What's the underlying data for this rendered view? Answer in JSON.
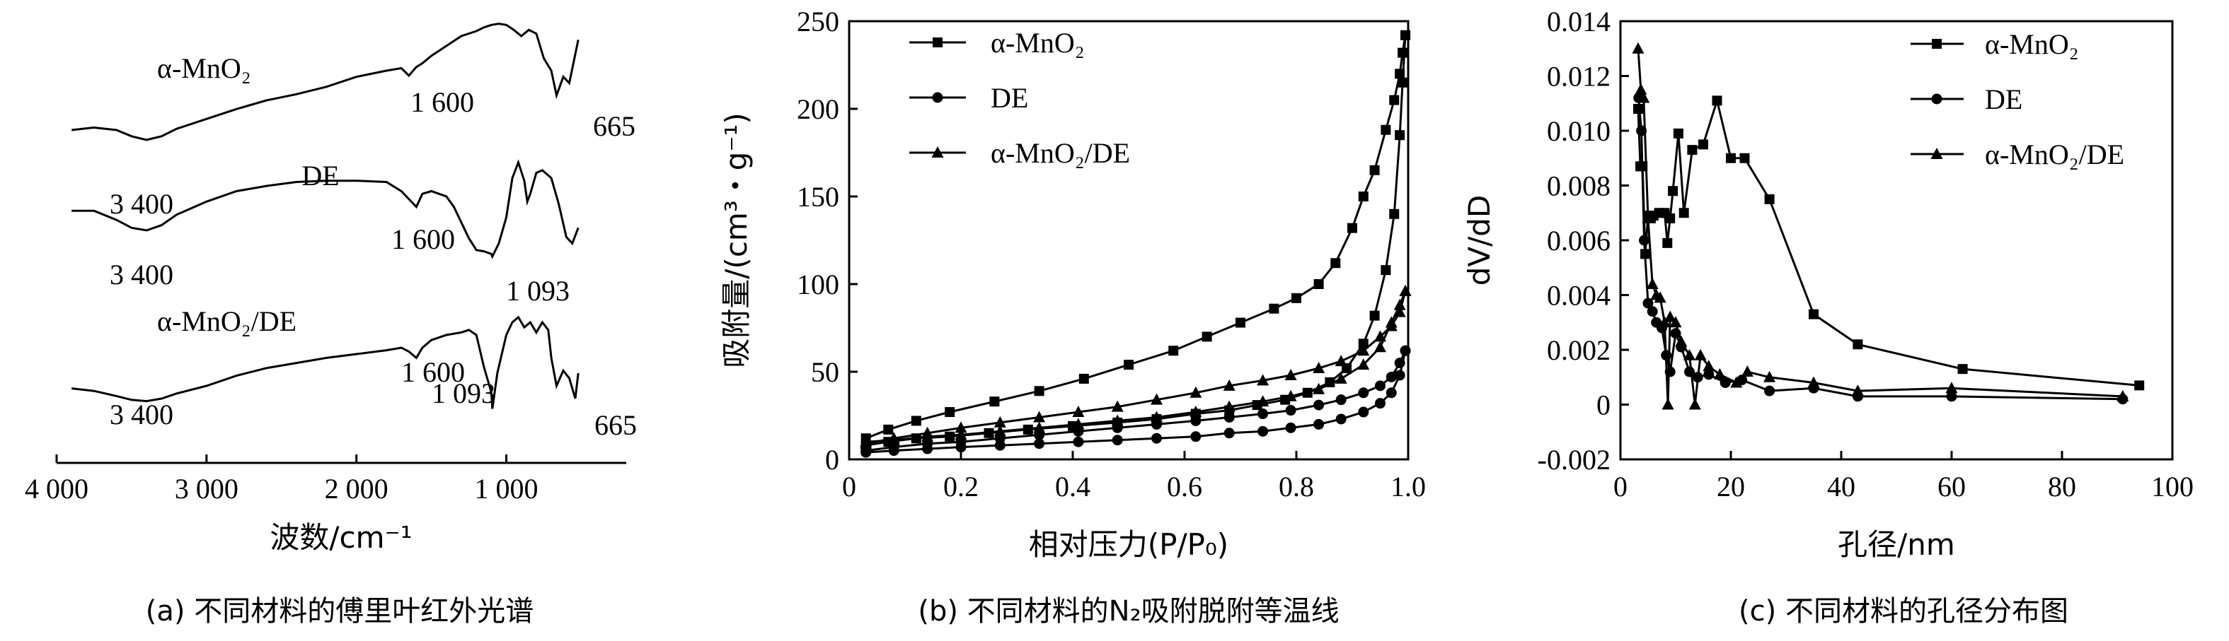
{
  "chart_data": [
    {
      "type": "line",
      "panel": "a",
      "caption": "(a) 不同材料的傅里叶红外光谱",
      "xlabel": "波数/cm⁻¹",
      "xticks": [
        "4 000",
        "3 000",
        "2 000",
        "1 000"
      ],
      "xlim": [
        4000,
        200
      ],
      "series": [
        {
          "name": "α-MnO₂",
          "x": [
            3900,
            3750,
            3600,
            3500,
            3400,
            3300,
            3200,
            3000,
            2900,
            2800,
            2600,
            2400,
            2200,
            2000,
            1800,
            1700,
            1650,
            1600,
            1560,
            1500,
            1400,
            1300,
            1200,
            1150,
            1100,
            1050,
            1000,
            950,
            900,
            850,
            800,
            750,
            700,
            665,
            620,
            580,
            520
          ],
          "y": [
            0.12,
            0.14,
            0.12,
            0.07,
            0.04,
            0.07,
            0.13,
            0.21,
            0.25,
            0.29,
            0.36,
            0.41,
            0.47,
            0.55,
            0.6,
            0.62,
            0.56,
            0.63,
            0.66,
            0.72,
            0.8,
            0.88,
            0.92,
            0.95,
            0.97,
            0.98,
            0.97,
            0.93,
            0.88,
            0.93,
            0.9,
            0.7,
            0.6,
            0.4,
            0.55,
            0.5,
            0.85
          ]
        },
        {
          "name": "DE",
          "x": [
            3900,
            3750,
            3600,
            3500,
            3400,
            3300,
            3200,
            3000,
            2800,
            2600,
            2400,
            2200,
            2000,
            1800,
            1700,
            1650,
            1600,
            1560,
            1500,
            1400,
            1350,
            1300,
            1250,
            1200,
            1150,
            1100,
            1093,
            1050,
            1000,
            960,
            920,
            880,
            860,
            840,
            800,
            760,
            700,
            650,
            600,
            560,
            520
          ],
          "y": [
            0.55,
            0.55,
            0.48,
            0.42,
            0.4,
            0.44,
            0.52,
            0.62,
            0.7,
            0.74,
            0.77,
            0.78,
            0.78,
            0.77,
            0.7,
            0.64,
            0.58,
            0.68,
            0.7,
            0.66,
            0.58,
            0.46,
            0.34,
            0.25,
            0.24,
            0.22,
            0.2,
            0.3,
            0.5,
            0.8,
            0.92,
            0.78,
            0.62,
            0.68,
            0.84,
            0.86,
            0.8,
            0.6,
            0.35,
            0.3,
            0.42
          ]
        },
        {
          "name": "α-MnO₂/DE",
          "x": [
            3900,
            3750,
            3600,
            3500,
            3400,
            3300,
            3200,
            3000,
            2800,
            2600,
            2400,
            2200,
            2000,
            1800,
            1700,
            1650,
            1600,
            1560,
            1500,
            1400,
            1300,
            1250,
            1200,
            1150,
            1100,
            1093,
            1060,
            1000,
            960,
            920,
            880,
            840,
            800,
            760,
            720,
            700,
            665,
            620,
            580,
            540,
            520
          ],
          "y": [
            0.28,
            0.26,
            0.22,
            0.19,
            0.18,
            0.2,
            0.24,
            0.3,
            0.38,
            0.44,
            0.48,
            0.52,
            0.55,
            0.58,
            0.6,
            0.57,
            0.52,
            0.6,
            0.66,
            0.7,
            0.72,
            0.74,
            0.7,
            0.45,
            0.25,
            0.12,
            0.4,
            0.7,
            0.8,
            0.84,
            0.76,
            0.8,
            0.72,
            0.8,
            0.74,
            0.52,
            0.3,
            0.42,
            0.36,
            0.2,
            0.4
          ]
        }
      ],
      "annotations": [
        {
          "text": "α-MnO₂"
        },
        {
          "text": "1 600"
        },
        {
          "text": "665"
        },
        {
          "text": "3 400"
        },
        {
          "text": "DE"
        },
        {
          "text": "1 600"
        },
        {
          "text": "3 400"
        },
        {
          "text": "1 093"
        },
        {
          "text": "α-MnO₂/DE"
        },
        {
          "text": "1 600"
        },
        {
          "text": "3 400"
        },
        {
          "text": "1 093"
        },
        {
          "text": "665"
        }
      ]
    },
    {
      "type": "line",
      "panel": "b",
      "caption": "(b) 不同材料的N₂吸附脱附等温线",
      "xlabel": "相对压力(P/P₀)",
      "ylabel": "吸附量/(cm³・g⁻¹)",
      "xlim": [
        0,
        1.0
      ],
      "ylim": [
        0,
        250
      ],
      "xticks": [
        "0",
        "0.2",
        "0.4",
        "0.6",
        "0.8",
        "1.0"
      ],
      "yticks": [
        "0",
        "50",
        "100",
        "150",
        "200",
        "250"
      ],
      "legend_position": "top-left",
      "series": [
        {
          "name": "α-MnO₂",
          "marker": "square",
          "adsorption": {
            "x": [
              0.03,
              0.07,
              0.12,
              0.18,
              0.25,
              0.32,
              0.4,
              0.48,
              0.55,
              0.62,
              0.68,
              0.73,
              0.78,
              0.82,
              0.86,
              0.89,
              0.92,
              0.94,
              0.96,
              0.975,
              0.985,
              0.99,
              0.995
            ],
            "y": [
              8,
              10,
              12,
              13,
              15,
              17,
              19,
              21,
              23,
              26,
              28,
              31,
              34,
              38,
              44,
              52,
              66,
              82,
              108,
              140,
              185,
              215,
              242
            ]
          },
          "desorption": {
            "x": [
              0.995,
              0.99,
              0.985,
              0.975,
              0.96,
              0.94,
              0.92,
              0.9,
              0.87,
              0.84,
              0.8,
              0.76,
              0.7,
              0.64,
              0.58,
              0.5,
              0.42,
              0.34,
              0.26,
              0.18,
              0.12,
              0.07,
              0.03
            ],
            "y": [
              242,
              232,
              220,
              205,
              188,
              165,
              150,
              132,
              112,
              100,
              92,
              86,
              78,
              70,
              62,
              54,
              46,
              39,
              33,
              27,
              22,
              17,
              12
            ]
          }
        },
        {
          "name": "DE",
          "marker": "circle",
          "adsorption": {
            "x": [
              0.03,
              0.08,
              0.14,
              0.2,
              0.27,
              0.34,
              0.41,
              0.48,
              0.55,
              0.62,
              0.68,
              0.74,
              0.79,
              0.84,
              0.88,
              0.92,
              0.95,
              0.97,
              0.985,
              0.995
            ],
            "y": [
              4,
              5,
              6,
              7,
              8,
              9,
              10,
              11,
              12,
              13,
              15,
              16,
              18,
              20,
              23,
              27,
              32,
              38,
              48,
              62
            ]
          },
          "desorption": {
            "x": [
              0.995,
              0.985,
              0.97,
              0.95,
              0.92,
              0.88,
              0.84,
              0.79,
              0.74,
              0.68,
              0.62,
              0.55,
              0.48,
              0.41,
              0.34,
              0.27,
              0.2,
              0.14,
              0.08,
              0.03
            ],
            "y": [
              62,
              55,
              47,
              42,
              38,
              34,
              31,
              28,
              26,
              24,
              22,
              20,
              18,
              16,
              14,
              12,
              10,
              9,
              7,
              5
            ]
          }
        },
        {
          "name": "α-MnO₂/DE",
          "marker": "triangle",
          "adsorption": {
            "x": [
              0.03,
              0.08,
              0.14,
              0.2,
              0.27,
              0.34,
              0.41,
              0.48,
              0.55,
              0.62,
              0.68,
              0.74,
              0.79,
              0.84,
              0.88,
              0.92,
              0.95,
              0.97,
              0.985,
              0.995
            ],
            "y": [
              10,
              11,
              13,
              14,
              16,
              18,
              20,
              22,
              24,
              27,
              30,
              33,
              36,
              40,
              46,
              54,
              64,
              78,
              88,
              96
            ]
          },
          "desorption": {
            "x": [
              0.995,
              0.985,
              0.97,
              0.95,
              0.92,
              0.88,
              0.84,
              0.79,
              0.74,
              0.68,
              0.62,
              0.55,
              0.48,
              0.41,
              0.34,
              0.27,
              0.2,
              0.14,
              0.08,
              0.03
            ],
            "y": [
              96,
              84,
              76,
              70,
              62,
              56,
              52,
              48,
              45,
              42,
              38,
              34,
              30,
              27,
              24,
              21,
              18,
              15,
              12,
              9
            ]
          }
        }
      ]
    },
    {
      "type": "line",
      "panel": "c",
      "caption": "(c) 不同材料的孔径分布图",
      "xlabel": "孔径/nm",
      "ylabel": "dV/dD",
      "xlim": [
        0,
        100
      ],
      "ylim": [
        -0.002,
        0.014
      ],
      "xticks": [
        "0",
        "20",
        "40",
        "60",
        "80",
        "100"
      ],
      "yticks": [
        "-0.002",
        "0",
        "0.002",
        "0.004",
        "0.006",
        "0.008",
        "0.010",
        "0.012",
        "0.014"
      ],
      "legend_position": "top-right",
      "series": [
        {
          "name": "α-MnO₂",
          "marker": "square",
          "x": [
            3.2,
            3.6,
            4.0,
            4.5,
            5.0,
            5.5,
            6.0,
            7.0,
            8.0,
            8.5,
            9.0,
            9.5,
            10.5,
            11.5,
            13.0,
            15.0,
            17.5,
            20.0,
            22.5,
            27.0,
            35.0,
            43.0,
            62.0,
            94.0
          ],
          "y": [
            0.0108,
            0.0087,
            0.0087,
            0.0055,
            0.0069,
            0.0068,
            0.0069,
            0.007,
            0.007,
            0.0059,
            0.0068,
            0.0078,
            0.0099,
            0.007,
            0.0093,
            0.0095,
            0.0111,
            0.009,
            0.009,
            0.0075,
            0.0033,
            0.0022,
            0.0013,
            0.0007
          ]
        },
        {
          "name": "DE",
          "marker": "circle",
          "x": [
            3.3,
            3.8,
            4.3,
            5.0,
            5.8,
            6.5,
            7.5,
            8.3,
            9.0,
            10.0,
            11.0,
            12.5,
            14.0,
            16.0,
            19.0,
            22.0,
            27.0,
            35.0,
            43.0,
            60.0,
            91.0
          ],
          "y": [
            0.0112,
            0.01,
            0.006,
            0.0037,
            0.0034,
            0.003,
            0.0028,
            0.0018,
            0.0012,
            0.0026,
            0.0021,
            0.0012,
            0.001,
            0.0011,
            0.0008,
            0.0009,
            0.0005,
            0.0006,
            0.0003,
            0.0003,
            0.0002
          ]
        },
        {
          "name": "α-MnO₂/DE",
          "marker": "triangle",
          "x": [
            3.2,
            3.7,
            4.2,
            5.0,
            5.8,
            6.5,
            7.2,
            8.0,
            8.6,
            9.0,
            10.0,
            11.0,
            12.5,
            13.5,
            14.5,
            16.0,
            18.0,
            21.0,
            23.0,
            27.0,
            35.0,
            43.0,
            60.0,
            91.0
          ],
          "y": [
            0.013,
            0.0115,
            0.0112,
            0.0068,
            0.0044,
            0.004,
            0.0039,
            0.003,
            0.0,
            0.0032,
            0.003,
            0.0023,
            0.0018,
            0.0,
            0.0018,
            0.0014,
            0.0011,
            0.0008,
            0.0012,
            0.001,
            0.0008,
            0.0005,
            0.0006,
            0.0003
          ]
        }
      ]
    }
  ]
}
